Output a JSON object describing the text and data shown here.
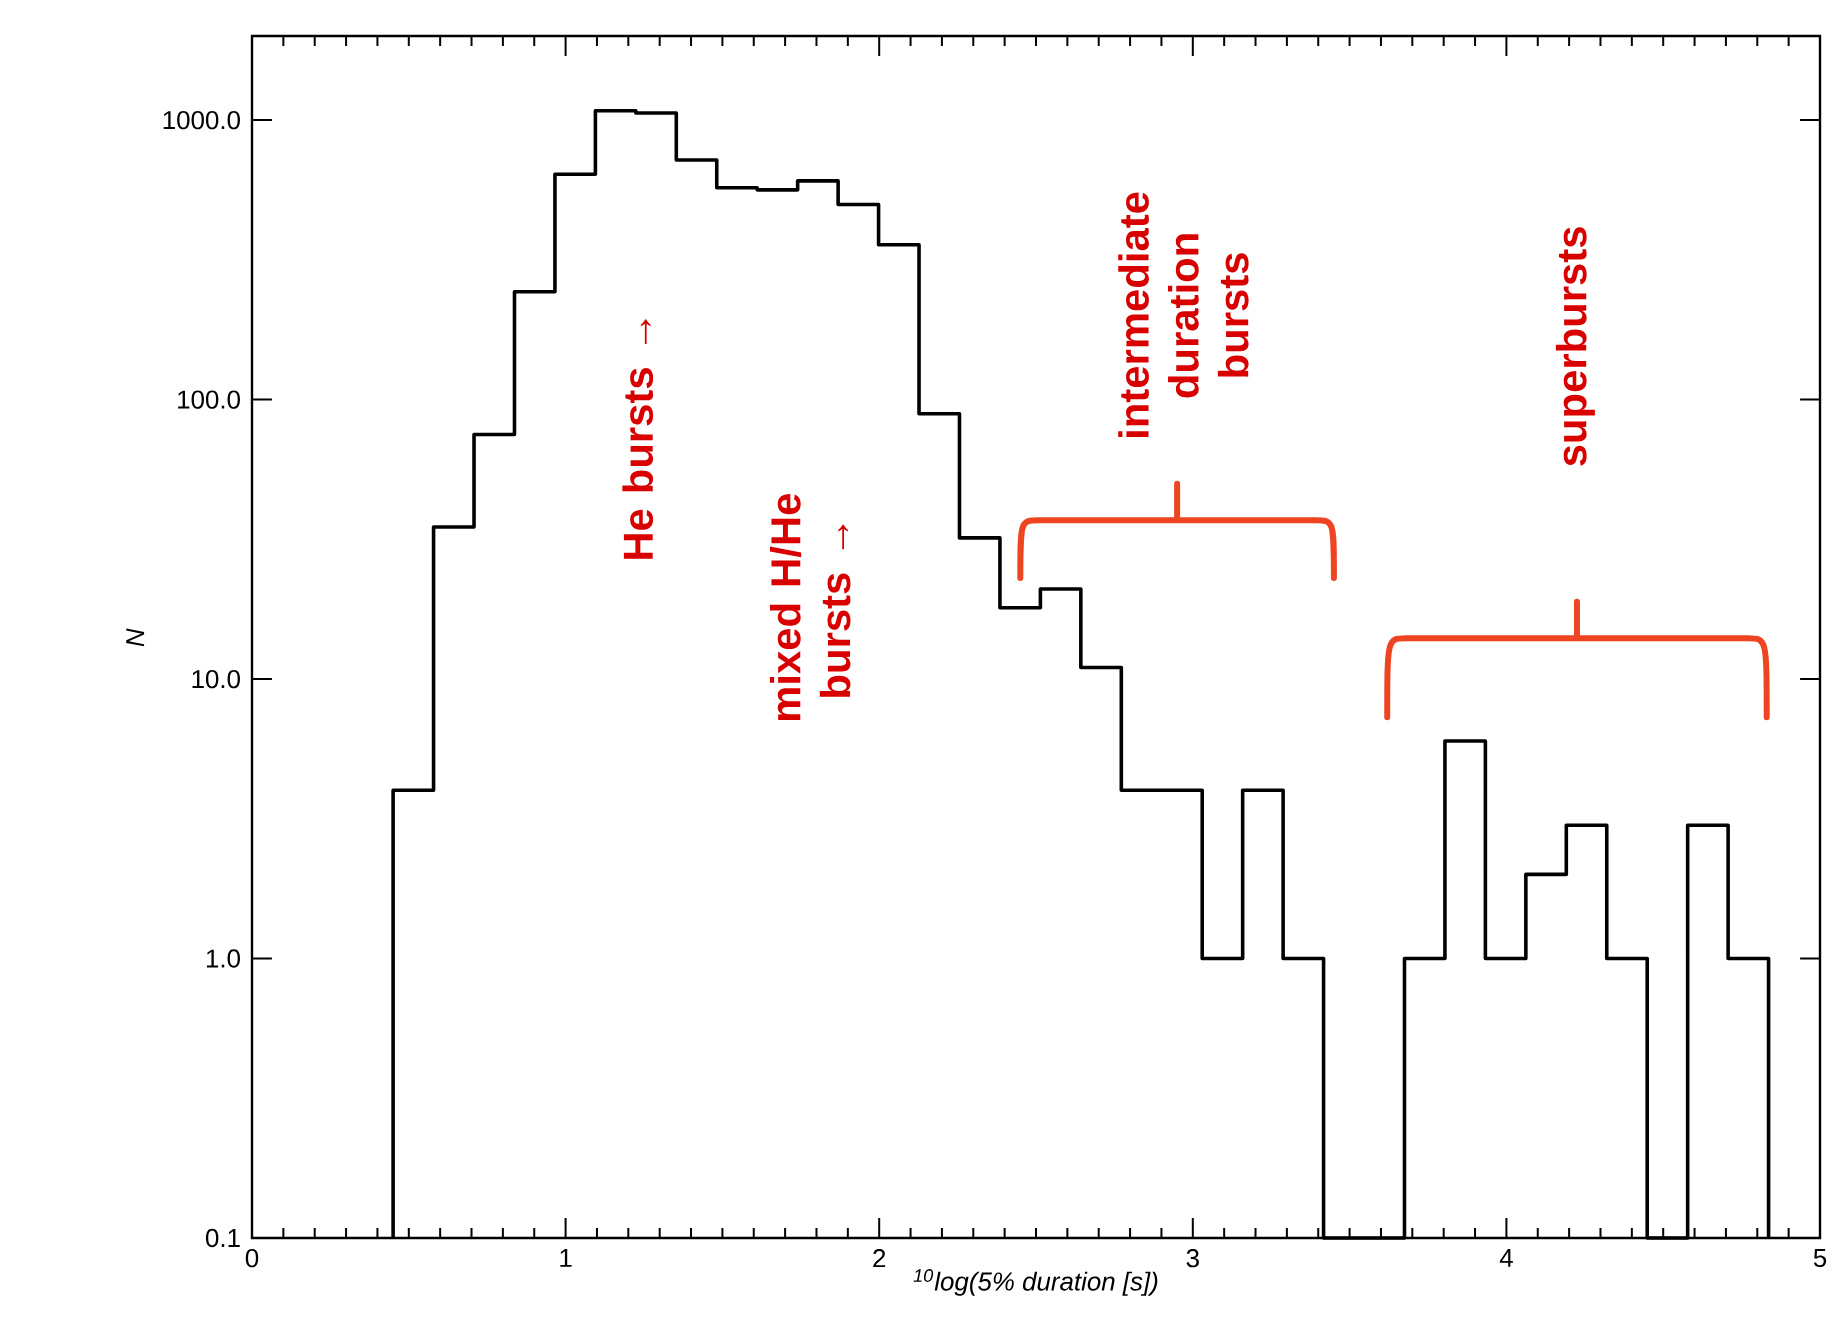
{
  "chart_data": {
    "type": "histogram",
    "xlabel": "$^{10}$log(5% duration [s])",
    "ylabel": "N",
    "bins": [
      0.45,
      0.579,
      0.708,
      0.837,
      0.966,
      1.095,
      1.224,
      1.353,
      1.482,
      1.611,
      1.74,
      1.869,
      1.998,
      2.127,
      2.256,
      2.385,
      2.514,
      2.643,
      2.772,
      2.901,
      3.03,
      3.159,
      3.288,
      3.417,
      3.546,
      3.675,
      3.804,
      3.933,
      4.062,
      4.191,
      4.32,
      4.449,
      4.578,
      4.707,
      4.836
    ],
    "values": [
      4,
      35,
      75,
      243,
      640,
      1080,
      1060,
      720,
      573,
      563,
      606,
      499,
      358,
      89,
      32,
      18,
      21,
      11,
      4,
      4,
      1,
      4,
      1,
      null,
      null,
      1,
      6,
      1,
      2,
      3,
      1,
      null,
      3,
      1
    ],
    "color": "#000000",
    "log": "y",
    "xlim": [
      0,
      5
    ],
    "ylim": [
      0.1,
      2000
    ],
    "xticks": [
      0,
      1,
      2,
      3,
      4,
      5
    ],
    "yticks": [
      {
        "value": 0.1,
        "label": "0.1"
      },
      {
        "value": 1,
        "label": "1.0"
      },
      {
        "value": 10,
        "label": "10.0"
      },
      {
        "value": 100,
        "label": "100.0"
      },
      {
        "value": 1000,
        "label": "1000.0"
      }
    ],
    "annotations": [
      "He bursts →",
      "mixed H/He bursts →",
      "intermediate duration bursts",
      "superbursts"
    ],
    "grid": false
  }
}
